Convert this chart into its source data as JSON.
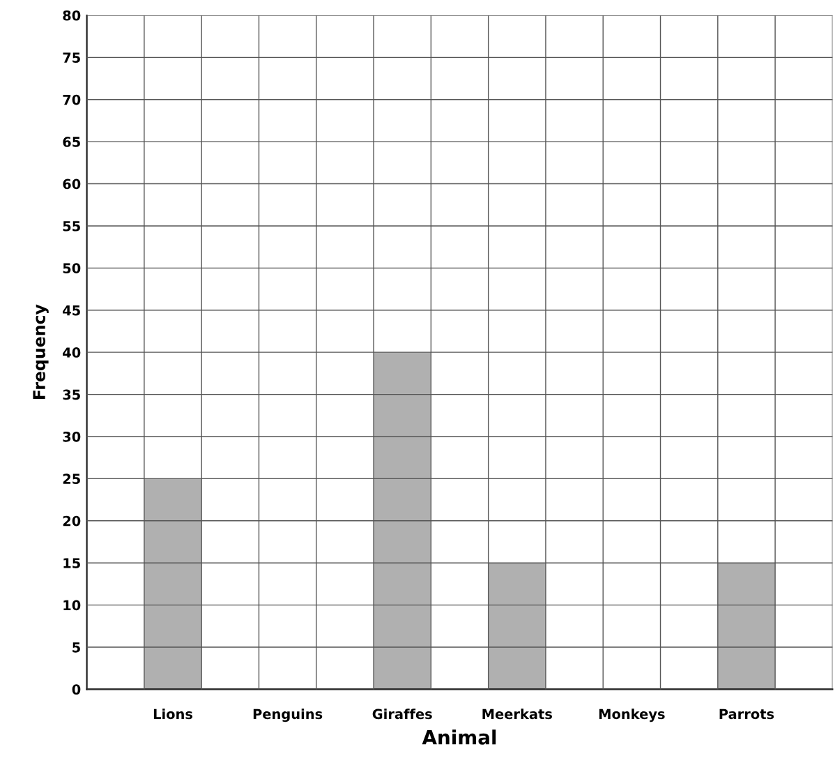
{
  "chart_data": {
    "type": "bar",
    "xlabel": "Animal",
    "ylabel": "Frequency",
    "categories": [
      "Lions",
      "Penguins",
      "Giraffes",
      "Meerkats",
      "Monkeys",
      "Parrots"
    ],
    "values": [
      25,
      0,
      40,
      15,
      0,
      15
    ],
    "color": "#b0b0b0",
    "ylim": [
      0,
      80
    ],
    "yticks": [
      0,
      5,
      10,
      15,
      20,
      25,
      30,
      35,
      40,
      45,
      50,
      55,
      60,
      65,
      70,
      75,
      80
    ],
    "grid": true
  }
}
